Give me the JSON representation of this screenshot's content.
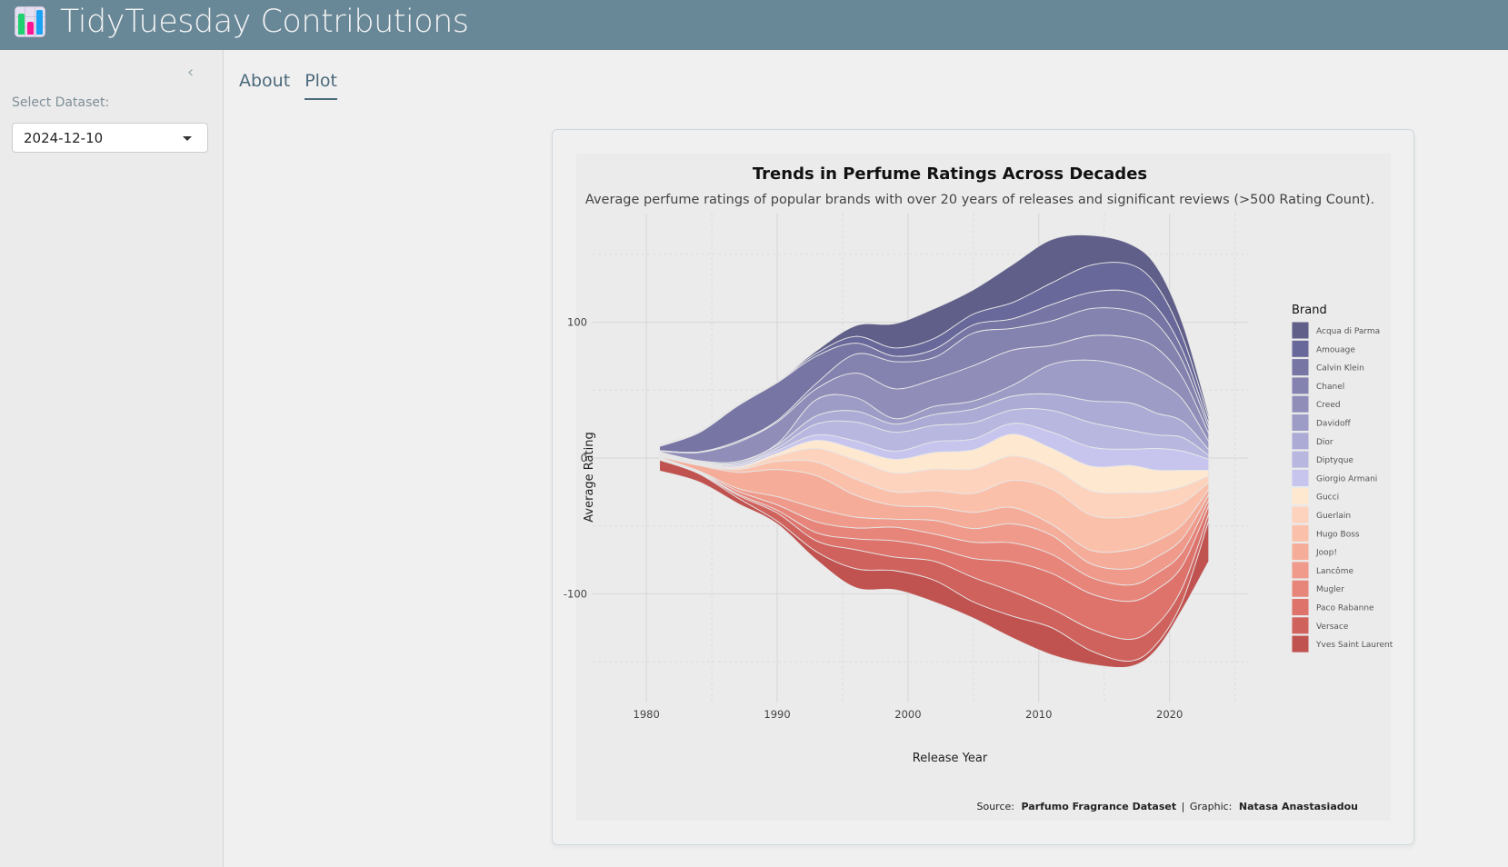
{
  "app": {
    "title": "TidyTuesday Contributions",
    "icon": "bar-chart-icon",
    "icon_colors": [
      "#1fd06f",
      "#ff1493",
      "#1aa3f5"
    ]
  },
  "sidebar": {
    "collapse_icon": "chevron-left-icon",
    "collapse_glyph": "‹",
    "select_label": "Select Dataset:",
    "select_value": "2024-12-10"
  },
  "tabs": [
    {
      "label": "About",
      "active": false
    },
    {
      "label": "Plot",
      "active": true
    }
  ],
  "chart_data": {
    "type": "area",
    "subtype": "streamgraph",
    "title": "Trends in Perfume Ratings Across Decades",
    "subtitle": "Average perfume ratings of popular brands with over 20 years of releases and significant reviews (>500 Rating Count).",
    "xlabel": "Release Year",
    "ylabel": "Average Rating",
    "xlim": [
      1977,
      2026
    ],
    "ylim": [
      -180,
      180
    ],
    "xticks": [
      1980,
      1990,
      2000,
      2010,
      2020
    ],
    "yticks": [
      100,
      0,
      -100
    ],
    "grid": true,
    "legend": {
      "title": "Brand",
      "position": "right"
    },
    "caption": {
      "source_label": "Source:",
      "source": "Parfumo Fragrance Dataset",
      "sep": "|",
      "graphic_label": "Graphic:",
      "author": "Natasa Anastasiadou"
    },
    "x": [
      1981,
      1984,
      1987,
      1990,
      1993,
      1996,
      1999,
      2002,
      2005,
      2008,
      2011,
      2014,
      2017,
      2019,
      2021,
      2023
    ],
    "series": [
      {
        "name": "Acqua di Parma",
        "color": "#5f5f89",
        "values": [
          0.5,
          0.5,
          0.5,
          0.5,
          2,
          8,
          18,
          22,
          18,
          28,
          32,
          22,
          15,
          14,
          10,
          3
        ]
      },
      {
        "name": "Amouage",
        "color": "#68689a",
        "values": [
          0.5,
          0.5,
          0.5,
          0.5,
          2,
          5,
          6,
          8,
          8,
          12,
          16,
          20,
          20,
          16,
          10,
          4
        ]
      },
      {
        "name": "Calvin Klein",
        "color": "#7775a4",
        "values": [
          3,
          14,
          26,
          28,
          20,
          8,
          4,
          6,
          6,
          7,
          12,
          12,
          14,
          12,
          8,
          3
        ]
      },
      {
        "name": "Chanel",
        "color": "#8482ae",
        "values": [
          0.5,
          0.5,
          1,
          1,
          4,
          14,
          20,
          16,
          24,
          16,
          18,
          20,
          20,
          18,
          12,
          4
        ]
      },
      {
        "name": "Creed",
        "color": "#908eb9",
        "values": [
          0.5,
          6,
          14,
          16,
          8,
          18,
          22,
          20,
          26,
          26,
          14,
          18,
          22,
          24,
          16,
          6
        ]
      },
      {
        "name": "Davidoff",
        "color": "#9d9cc6",
        "values": [
          0.5,
          0.5,
          1,
          1,
          12,
          10,
          4,
          6,
          6,
          8,
          22,
          30,
          26,
          24,
          16,
          6
        ]
      },
      {
        "name": "Dior",
        "color": "#acabd5",
        "values": [
          0.5,
          0.5,
          1,
          2,
          6,
          8,
          6,
          8,
          10,
          10,
          12,
          16,
          20,
          16,
          12,
          4
        ]
      },
      {
        "name": "Diptyque",
        "color": "#b8b7e0",
        "values": [
          0.5,
          0.5,
          1,
          2,
          8,
          14,
          14,
          12,
          12,
          10,
          16,
          18,
          14,
          10,
          10,
          3
        ]
      },
      {
        "name": "Giorgio Armani",
        "color": "#c7c5ee",
        "values": [
          0.5,
          0.5,
          1,
          2,
          4,
          6,
          6,
          8,
          8,
          8,
          12,
          14,
          12,
          16,
          14,
          8
        ]
      },
      {
        "name": "Gucci",
        "color": "#ffe8d0",
        "values": [
          0.5,
          0.5,
          1,
          2,
          6,
          8,
          10,
          12,
          14,
          16,
          14,
          18,
          20,
          16,
          12,
          4
        ]
      },
      {
        "name": "Guerlain",
        "color": "#fdd3bd",
        "values": [
          0.5,
          0.5,
          1,
          4,
          10,
          14,
          14,
          16,
          18,
          18,
          16,
          18,
          18,
          14,
          12,
          5
        ]
      },
      {
        "name": "Hugo Boss",
        "color": "#fbc0aa",
        "values": [
          0.5,
          0.5,
          2,
          6,
          10,
          12,
          10,
          12,
          14,
          20,
          26,
          26,
          24,
          22,
          16,
          5
        ]
      },
      {
        "name": "Joop!",
        "color": "#f5ad9a",
        "values": [
          0.5,
          4,
          12,
          20,
          24,
          16,
          10,
          10,
          12,
          12,
          8,
          10,
          14,
          12,
          10,
          4
        ]
      },
      {
        "name": "Lancôme",
        "color": "#ef9a8a",
        "values": [
          0.5,
          0.5,
          2,
          6,
          10,
          8,
          6,
          10,
          10,
          14,
          14,
          10,
          12,
          12,
          10,
          4
        ]
      },
      {
        "name": "Mugler",
        "color": "#e8857a",
        "values": [
          0.5,
          0.5,
          2,
          4,
          8,
          8,
          10,
          10,
          12,
          14,
          14,
          12,
          12,
          12,
          10,
          4
        ]
      },
      {
        "name": "Paco Rabanne",
        "color": "#de736b",
        "values": [
          0.5,
          0.5,
          1,
          2,
          6,
          8,
          12,
          10,
          14,
          22,
          26,
          26,
          28,
          26,
          16,
          6
        ]
      },
      {
        "name": "Versace",
        "color": "#d0625d",
        "values": [
          0.5,
          0.5,
          2,
          6,
          8,
          14,
          10,
          14,
          18,
          18,
          14,
          16,
          16,
          14,
          10,
          5
        ]
      },
      {
        "name": "Yves Saint Laurent",
        "color": "#c0524f",
        "values": [
          8,
          6,
          4,
          2,
          6,
          14,
          14,
          16,
          12,
          16,
          20,
          10,
          4,
          4,
          6,
          30
        ]
      }
    ],
    "baseline_offset": [
      0,
      1,
      3,
      4,
      2,
      1,
      1,
      2,
      3,
      5,
      8,
      6,
      2,
      0,
      -6,
      -22
    ]
  }
}
